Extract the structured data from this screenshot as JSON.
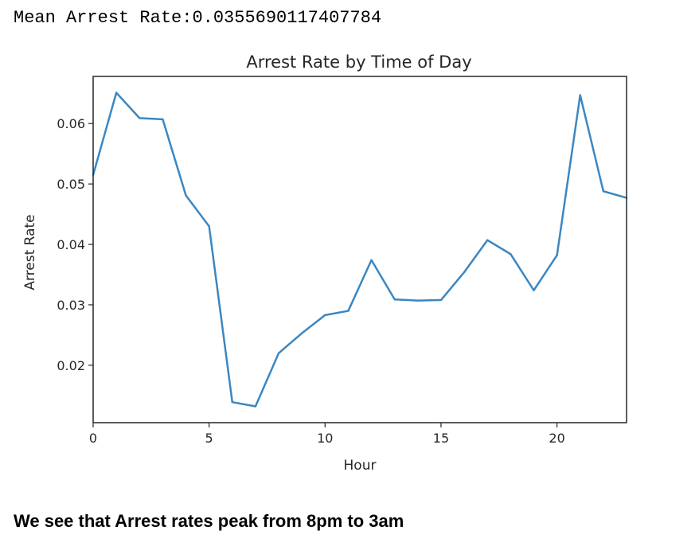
{
  "output": {
    "mean_prefix": "Mean Arrest Rate:",
    "mean_value": "0.0355690117407784"
  },
  "chart_data": {
    "type": "line",
    "title": "Arrest Rate by Time of Day",
    "xlabel": "Hour",
    "ylabel": "Arrest Rate",
    "xlim": [
      0,
      23
    ],
    "ylim": [
      0.0105,
      0.0678
    ],
    "xticks": [
      0,
      5,
      10,
      15,
      20
    ],
    "yticks": [
      0.02,
      0.03,
      0.04,
      0.05,
      0.06
    ],
    "ytick_labels": [
      "0.02",
      "0.03",
      "0.04",
      "0.05",
      "0.06"
    ],
    "grid": false,
    "line_color": "#3b87c2",
    "x": [
      0,
      1,
      2,
      3,
      4,
      5,
      6,
      7,
      8,
      9,
      10,
      11,
      12,
      13,
      14,
      15,
      16,
      17,
      18,
      19,
      20,
      21,
      22,
      23
    ],
    "series": [
      {
        "values": [
          0.0515,
          0.0651,
          0.0609,
          0.0607,
          0.0481,
          0.043,
          0.0139,
          0.0132,
          0.022,
          0.0253,
          0.0283,
          0.029,
          0.0374,
          0.0309,
          0.0307,
          0.0308,
          0.0354,
          0.0407,
          0.0384,
          0.0324,
          0.0382,
          0.0647,
          0.0488,
          0.0477
        ]
      }
    ]
  },
  "conclusion": "We see that Arrest rates peak from 8pm to 3am"
}
